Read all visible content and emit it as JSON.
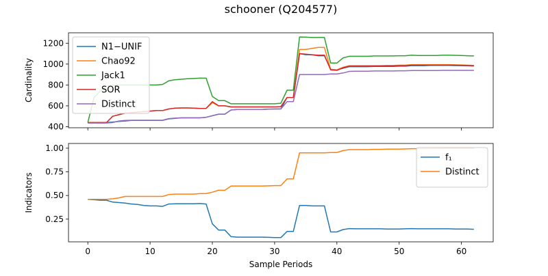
{
  "figure": {
    "title": "schooner (Q204577)"
  },
  "chart_data": [
    {
      "type": "line",
      "ylabel": "Cardinality",
      "xlim": [
        -3.1,
        65.1
      ],
      "ylim": [
        390,
        1300
      ],
      "yticks": [
        400,
        600,
        800,
        1000,
        1200
      ],
      "xticks": [
        0,
        10,
        20,
        30,
        40,
        50,
        60
      ],
      "show_xtick_labels": false,
      "legend": "top-left",
      "x": [
        0,
        1,
        2,
        3,
        4,
        5,
        6,
        7,
        8,
        9,
        10,
        11,
        12,
        13,
        14,
        15,
        16,
        17,
        18,
        19,
        20,
        21,
        22,
        23,
        24,
        25,
        26,
        27,
        28,
        29,
        30,
        31,
        32,
        33,
        34,
        35,
        36,
        37,
        38,
        39,
        40,
        41,
        42,
        43,
        44,
        45,
        46,
        47,
        48,
        49,
        50,
        51,
        52,
        53,
        54,
        55,
        56,
        57,
        58,
        59,
        60,
        61,
        62
      ],
      "series": [
        {
          "name": "N1−UNIF",
          "color": "#1f77b4",
          "values": [
            440,
            440,
            440,
            440,
            445,
            450,
            455,
            460,
            460,
            460,
            460,
            460,
            460,
            475,
            480,
            485,
            485,
            485,
            485,
            490,
            505,
            520,
            520,
            560,
            565,
            565,
            565,
            565,
            565,
            568,
            570,
            570,
            680,
            680,
            1100,
            1090,
            1090,
            1080,
            1080,
            950,
            945,
            960,
            975,
            975,
            975,
            975,
            978,
            978,
            978,
            978,
            980,
            980,
            985,
            985,
            985,
            988,
            988,
            988,
            988,
            986,
            985,
            984,
            982
          ]
        },
        {
          "name": "Chao92",
          "color": "#ff7f0e",
          "values": [
            440,
            440,
            440,
            440,
            500,
            515,
            530,
            535,
            540,
            545,
            550,
            555,
            555,
            570,
            578,
            580,
            580,
            578,
            575,
            575,
            630,
            600,
            600,
            590,
            590,
            590,
            590,
            590,
            590,
            590,
            590,
            592,
            680,
            680,
            1140,
            1140,
            1150,
            1160,
            1160,
            950,
            945,
            970,
            985,
            985,
            985,
            985,
            985,
            985,
            988,
            988,
            990,
            990,
            995,
            995,
            995,
            995,
            995,
            995,
            995,
            993,
            992,
            990,
            988
          ]
        },
        {
          "name": "Jack1",
          "color": "#2ca02c",
          "values": [
            440,
            680,
            740,
            790,
            795,
            800,
            800,
            800,
            800,
            800,
            800,
            800,
            805,
            840,
            850,
            855,
            860,
            862,
            865,
            865,
            690,
            650,
            650,
            620,
            620,
            620,
            620,
            620,
            620,
            620,
            620,
            625,
            750,
            750,
            1260,
            1258,
            1255,
            1255,
            1255,
            1010,
            1010,
            1060,
            1075,
            1075,
            1075,
            1075,
            1078,
            1078,
            1078,
            1078,
            1080,
            1080,
            1085,
            1082,
            1082,
            1082,
            1082,
            1085,
            1085,
            1084,
            1082,
            1080,
            1078
          ]
        },
        {
          "name": "SOR",
          "color": "#d62728",
          "values": [
            440,
            440,
            440,
            440,
            500,
            515,
            530,
            535,
            540,
            545,
            550,
            555,
            555,
            570,
            578,
            580,
            580,
            578,
            575,
            575,
            640,
            600,
            600,
            590,
            590,
            590,
            590,
            590,
            590,
            590,
            590,
            592,
            680,
            680,
            1100,
            1095,
            1090,
            1085,
            1085,
            945,
            940,
            965,
            980,
            980,
            980,
            980,
            982,
            982,
            982,
            982,
            985,
            985,
            990,
            990,
            990,
            990,
            990,
            990,
            990,
            990,
            988,
            986,
            984
          ]
        },
        {
          "name": "Distinct",
          "color": "#9467bd",
          "values": [
            435,
            435,
            435,
            435,
            440,
            455,
            460,
            462,
            462,
            462,
            462,
            462,
            462,
            478,
            482,
            485,
            485,
            485,
            485,
            490,
            505,
            520,
            520,
            560,
            565,
            565,
            565,
            565,
            565,
            568,
            570,
            570,
            640,
            640,
            900,
            900,
            900,
            900,
            900,
            905,
            905,
            915,
            930,
            932,
            932,
            932,
            934,
            934,
            934,
            934,
            936,
            936,
            938,
            938,
            938,
            938,
            938,
            940,
            940,
            940,
            940,
            940,
            940
          ]
        }
      ]
    },
    {
      "type": "line",
      "ylabel": "Indicators",
      "xlabel": "Sample Periods",
      "xlim": [
        -3.1,
        65.1
      ],
      "ylim": [
        0.01,
        1.05
      ],
      "yticks": [
        0.25,
        0.5,
        0.75,
        1.0
      ],
      "ytick_labels": [
        "0.25",
        "0.50",
        "0.75",
        "1.00"
      ],
      "xticks": [
        0,
        10,
        20,
        30,
        40,
        50,
        60
      ],
      "show_xtick_labels": true,
      "legend": "top-right",
      "x": [
        0,
        1,
        2,
        3,
        4,
        5,
        6,
        7,
        8,
        9,
        10,
        11,
        12,
        13,
        14,
        15,
        16,
        17,
        18,
        19,
        20,
        21,
        22,
        23,
        24,
        25,
        26,
        27,
        28,
        29,
        30,
        31,
        32,
        33,
        34,
        35,
        36,
        37,
        38,
        39,
        40,
        41,
        42,
        43,
        44,
        45,
        46,
        47,
        48,
        49,
        50,
        51,
        52,
        53,
        54,
        55,
        56,
        57,
        58,
        59,
        60,
        61,
        62
      ],
      "series": [
        {
          "name": "f₁",
          "color": "#1f77b4",
          "values": [
            0.46,
            0.455,
            0.45,
            0.45,
            0.43,
            0.425,
            0.42,
            0.41,
            0.405,
            0.395,
            0.39,
            0.39,
            0.385,
            0.41,
            0.412,
            0.413,
            0.413,
            0.413,
            0.415,
            0.41,
            0.2,
            0.135,
            0.135,
            0.065,
            0.06,
            0.06,
            0.06,
            0.06,
            0.06,
            0.058,
            0.055,
            0.055,
            0.12,
            0.12,
            0.395,
            0.395,
            0.39,
            0.39,
            0.39,
            0.115,
            0.115,
            0.14,
            0.15,
            0.148,
            0.148,
            0.148,
            0.148,
            0.148,
            0.146,
            0.146,
            0.146,
            0.148,
            0.15,
            0.148,
            0.148,
            0.148,
            0.148,
            0.148,
            0.148,
            0.146,
            0.145,
            0.145,
            0.143
          ]
        },
        {
          "name": "Distinct",
          "color": "#ff7f0e",
          "values": [
            0.46,
            0.46,
            0.46,
            0.46,
            0.465,
            0.475,
            0.49,
            0.49,
            0.49,
            0.49,
            0.49,
            0.49,
            0.49,
            0.51,
            0.515,
            0.515,
            0.515,
            0.515,
            0.52,
            0.52,
            0.535,
            0.555,
            0.555,
            0.6,
            0.6,
            0.6,
            0.6,
            0.6,
            0.6,
            0.602,
            0.605,
            0.605,
            0.675,
            0.675,
            0.95,
            0.95,
            0.95,
            0.95,
            0.95,
            0.955,
            0.955,
            0.975,
            0.985,
            0.985,
            0.985,
            0.985,
            0.988,
            0.988,
            0.99,
            0.99,
            0.99,
            0.992,
            0.995,
            0.995,
            0.995,
            0.996,
            0.996,
            0.997,
            0.997,
            0.997,
            0.998,
            0.998,
            0.998
          ]
        }
      ]
    }
  ]
}
